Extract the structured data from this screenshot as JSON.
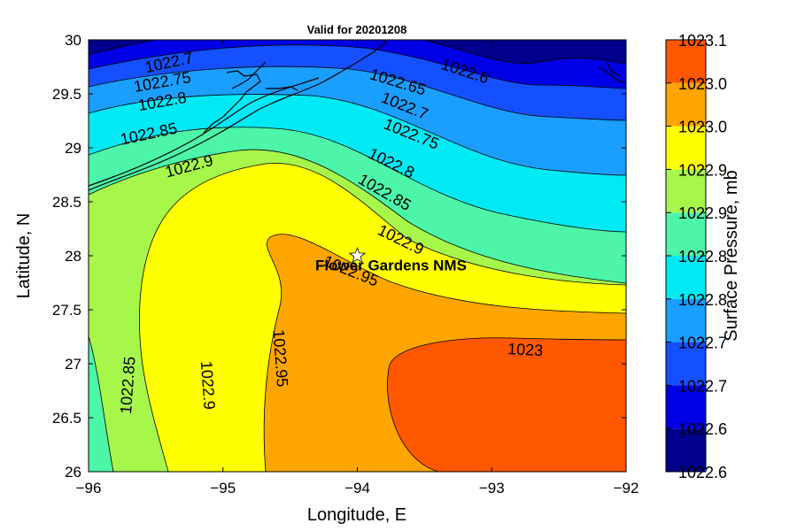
{
  "chart_data": {
    "type": "contour",
    "title": "Valid for 20201208",
    "xlabel": "Longitude, E",
    "ylabel": "Latitude, N",
    "colorbar_label": "Surface Pressure, mb",
    "xlim": [
      -96,
      -92
    ],
    "ylim": [
      26,
      30
    ],
    "x_ticks": [
      -96,
      -95,
      -94,
      -93,
      -92
    ],
    "x_tick_labels": [
      "−96",
      "−95",
      "−94",
      "−93",
      "−92"
    ],
    "y_ticks": [
      26,
      26.5,
      27,
      27.5,
      28,
      28.5,
      29,
      29.5,
      30
    ],
    "y_tick_labels": [
      "26",
      "26.5",
      "27",
      "27.5",
      "28",
      "28.5",
      "29",
      "29.5",
      "30"
    ],
    "contour_levels": [
      1022.6,
      1022.65,
      1022.7,
      1022.75,
      1022.8,
      1022.85,
      1022.9,
      1022.95,
      1023.0,
      1023.05,
      1023.1
    ],
    "level_colors": [
      "#00008c",
      "#0000e6",
      "#1450ff",
      "#1a9eff",
      "#00eaf6",
      "#4cf5a8",
      "#a6f74a",
      "#ffff00",
      "#ffa500",
      "#ff5800"
    ],
    "colorbar_tick_labels": [
      "1023.1",
      "1023.0",
      "1023.0",
      "1022.9",
      "1022.9",
      "1022.8",
      "1022.8",
      "1022.7",
      "1022.7",
      "1022.6",
      "1022.6"
    ],
    "contour_labels": [
      {
        "text": "1022.6",
        "lon": -93.2,
        "lat": 29.7
      },
      {
        "text": "1022.65",
        "lon": -93.7,
        "lat": 29.6
      },
      {
        "text": "1022.7",
        "lon": -95.4,
        "lat": 29.78
      },
      {
        "text": "1022.75",
        "lon": -95.45,
        "lat": 29.6
      },
      {
        "text": "1022.8",
        "lon": -95.45,
        "lat": 29.42
      },
      {
        "text": "1022.85",
        "lon": -95.55,
        "lat": 29.12
      },
      {
        "text": "1022.9",
        "lon": -95.25,
        "lat": 28.82
      },
      {
        "text": "1022.7",
        "lon": -93.65,
        "lat": 29.38
      },
      {
        "text": "1022.75",
        "lon": -93.6,
        "lat": 29.12
      },
      {
        "text": "1022.8",
        "lon": -93.75,
        "lat": 28.85
      },
      {
        "text": "1022.85",
        "lon": -93.8,
        "lat": 28.58
      },
      {
        "text": "1022.9",
        "lon": -93.68,
        "lat": 28.14
      },
      {
        "text": "1022.95",
        "lon": -94.05,
        "lat": 27.85
      },
      {
        "text": "1023",
        "lon": -92.75,
        "lat": 27.12
      },
      {
        "text": "1022.85",
        "lon": -95.7,
        "lat": 26.8
      },
      {
        "text": "1022.9",
        "lon": -95.12,
        "lat": 26.8
      },
      {
        "text": "1022.95",
        "lon": -94.58,
        "lat": 27.05
      }
    ],
    "annotations": [
      {
        "text": "Flower Gardens NMS",
        "lon": -93.75,
        "lat": 27.9,
        "marker": "star",
        "marker_lon": -94.0,
        "marker_lat": 28.0
      }
    ],
    "grid": false,
    "basemap": "coastline"
  }
}
